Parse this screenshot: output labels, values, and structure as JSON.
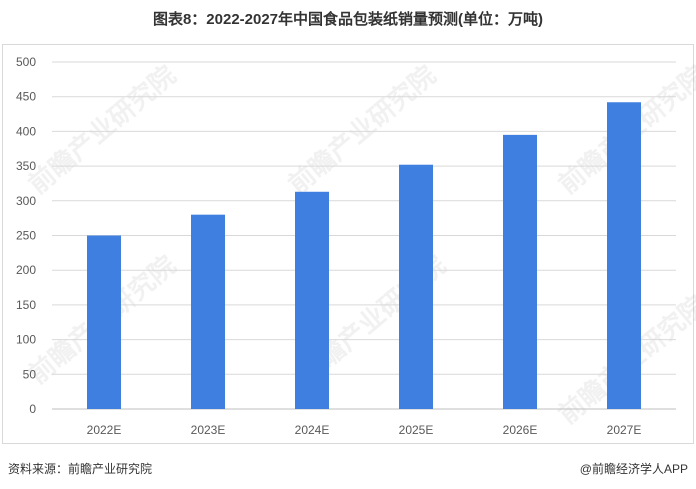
{
  "title": "图表8：2022-2027年中国食品包装纸销量预测(单位：万吨)",
  "footer": {
    "source": "资料来源：前瞻产业研究院",
    "brand": "@前瞻经济学人APP"
  },
  "watermark": "前瞻产业研究院",
  "colors": {
    "bar": "#3f7fdf",
    "grid": "#d9d9d9",
    "axis_text": "#595959"
  },
  "chart_data": {
    "type": "bar",
    "title": "图表8：2022-2027年中国食品包装纸销量预测(单位：万吨)",
    "xlabel": "",
    "ylabel": "",
    "categories": [
      "2022E",
      "2023E",
      "2024E",
      "2025E",
      "2026E",
      "2027E"
    ],
    "values": [
      250,
      280,
      313,
      352,
      395,
      442
    ],
    "ylim": [
      0,
      500
    ],
    "yticks": [
      0,
      50,
      100,
      150,
      200,
      250,
      300,
      350,
      400,
      450,
      500
    ],
    "grid": true,
    "legend": "none"
  }
}
